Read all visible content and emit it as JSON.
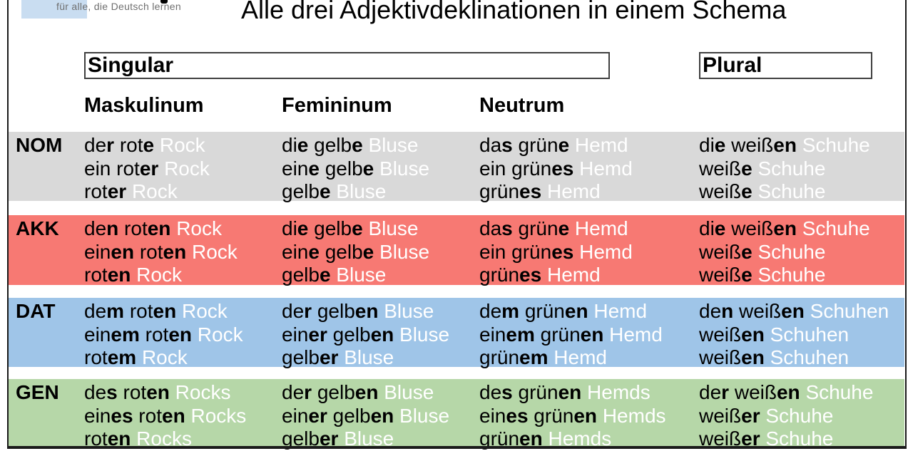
{
  "header": {
    "logo_tagline": "für alle, die Deutsch lernen",
    "title": "Alle drei Adjektivdeklinationen in einem Schema"
  },
  "group_headers": {
    "singular": "Singular",
    "plural": "Plural"
  },
  "column_headers": [
    "Maskulinum",
    "Femininum",
    "Neutrum"
  ],
  "colors": {
    "case_nom": "#d9d9d9",
    "case_akk": "#f77973",
    "case_dat": "#9fc5e8",
    "case_gen": "#b6d7a8",
    "noun_text": "#ffffff",
    "logo_box": "#c9ddf1"
  },
  "rows": [
    {
      "label": "NOM",
      "name": "nom",
      "color": "#d9d9d9",
      "cells": {
        "maskulinum": [
          "de*r* rot*e* {Rock}",
          "ein rot*er* {Rock}",
          "rot*er* {Rock}"
        ],
        "femininum": [
          "di*e* gelb*e* {Bluse}",
          "ein*e* gelb*e* {Bluse}",
          "gelb*e* {Bluse}"
        ],
        "neutrum": [
          "da*s* grün*e* {Hemd}",
          "ein grün*es* {Hemd}",
          "grün*es* {Hemd}"
        ],
        "plural": [
          "di*e* weiß*en* {Schuhe}",
          "weiß*e* {Schuhe}",
          "weiß*e* {Schuhe}"
        ]
      }
    },
    {
      "label": "AKK",
      "name": "akk",
      "color": "#f77973",
      "cells": {
        "maskulinum": [
          "de*n* rot*en* {Rock}",
          "ein*en* rot*en* {Rock}",
          "rot*en* {Rock}"
        ],
        "femininum": [
          "di*e* gelb*e* {Bluse}",
          "ein*e* gelb*e* {Bluse}",
          "gelb*e* {Bluse}"
        ],
        "neutrum": [
          "da*s* grün*e* {Hemd}",
          "ein grün*es* {Hemd}",
          "grün*es* {Hemd}"
        ],
        "plural": [
          "di*e* weiß*en* {Schuhe}",
          "weiß*e* {Schuhe}",
          "weiß*e* {Schuhe}"
        ]
      }
    },
    {
      "label": "DAT",
      "name": "dat",
      "color": "#9fc5e8",
      "cells": {
        "maskulinum": [
          "de*m* rot*en* {Rock}",
          "ein*em* rot*en* {Rock}",
          "rot*em* {Rock}"
        ],
        "femininum": [
          "de*r* gelb*en* {Bluse}",
          "ein*er* gelb*en* {Bluse}",
          "gelb*er* {Bluse}"
        ],
        "neutrum": [
          "de*m* grün*en* {Hemd}",
          "ein*em* grün*en* {Hemd}",
          "grün*em* {Hemd}"
        ],
        "plural": [
          "de*n* weiß*en* {Schuhen}",
          "weiß*en* {Schuhen}",
          "weiß*en* {Schuhen}"
        ]
      }
    },
    {
      "label": "GEN",
      "name": "gen",
      "color": "#b6d7a8",
      "cells": {
        "maskulinum": [
          "de*s* rot*en* {Rocks}",
          "ein*es* rot*en* {Rocks}",
          "rot*en* {Rocks}"
        ],
        "femininum": [
          "de*r* gelb*en* {Bluse}",
          "ein*er* gelb*en* {Bluse}",
          "gelb*er* {Bluse}"
        ],
        "neutrum": [
          "de*s* grün*en* {Hemds}",
          "ein*es* grün*en* {Hemds}",
          "grün*en* {Hemds}"
        ],
        "plural": [
          "de*r* weiß*en* {Schuhe}",
          "weiß*er* {Schuhe}",
          "weiß*er* {Schuhe}"
        ]
      }
    }
  ]
}
